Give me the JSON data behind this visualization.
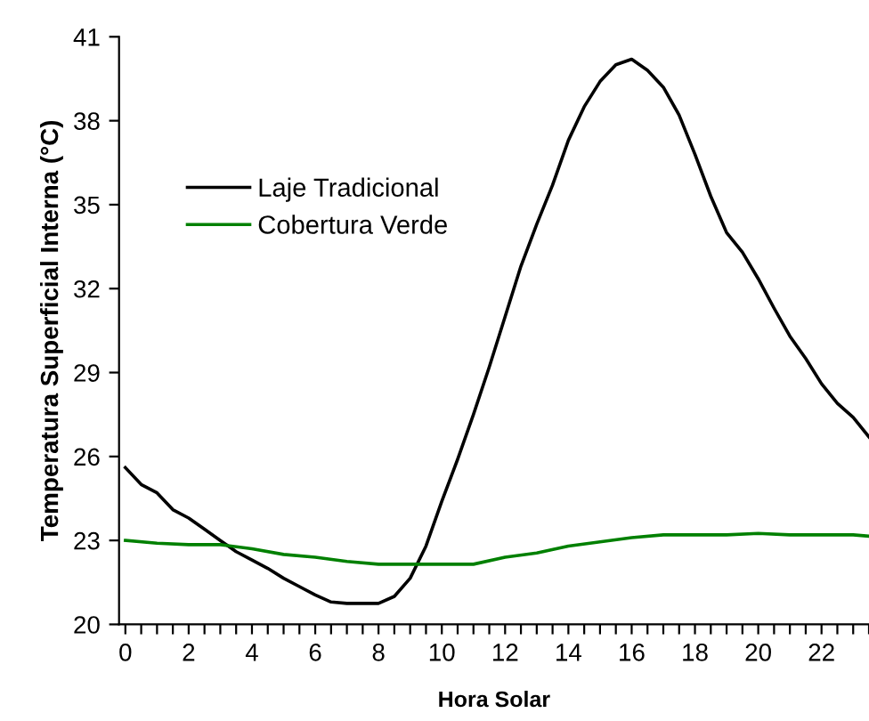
{
  "chart_data": {
    "type": "line",
    "xlabel": "Hora Solar",
    "ylabel": "Temperatura Superficial Interna (°C)",
    "xlim": [
      -0.2,
      23.5
    ],
    "ylim": [
      20,
      41
    ],
    "xticks": [
      0,
      {
        "value": 0.5,
        "label": null
      },
      {
        "value": 1,
        "label": null
      },
      {
        "value": 1.5,
        "label": null
      },
      2,
      {
        "value": 2.5,
        "label": null
      },
      {
        "value": 3,
        "label": null
      },
      {
        "value": 3.5,
        "label": null
      },
      4,
      {
        "value": 4.5,
        "label": null
      },
      {
        "value": 5,
        "label": null
      },
      {
        "value": 5.5,
        "label": null
      },
      6,
      {
        "value": 6.5,
        "label": null
      },
      {
        "value": 7,
        "label": null
      },
      {
        "value": 7.5,
        "label": null
      },
      8,
      {
        "value": 8.5,
        "label": null
      },
      {
        "value": 9,
        "label": null
      },
      {
        "value": 9.5,
        "label": null
      },
      10,
      {
        "value": 10.5,
        "label": null
      },
      {
        "value": 11,
        "label": null
      },
      {
        "value": 11.5,
        "label": null
      },
      12,
      {
        "value": 12.5,
        "label": null
      },
      {
        "value": 13,
        "label": null
      },
      {
        "value": 13.5,
        "label": null
      },
      14,
      {
        "value": 14.5,
        "label": null
      },
      {
        "value": 15,
        "label": null
      },
      {
        "value": 15.5,
        "label": null
      },
      16,
      {
        "value": 16.5,
        "label": null
      },
      {
        "value": 17,
        "label": null
      },
      {
        "value": 17.5,
        "label": null
      },
      18,
      {
        "value": 18.5,
        "label": null
      },
      {
        "value": 19,
        "label": null
      },
      {
        "value": 19.5,
        "label": null
      },
      20,
      {
        "value": 20.5,
        "label": null
      },
      {
        "value": 21,
        "label": null
      },
      {
        "value": 21.5,
        "label": null
      },
      22,
      {
        "value": 22.5,
        "label": null
      },
      {
        "value": 23,
        "label": null
      },
      {
        "value": 23.5,
        "label": null
      }
    ],
    "yticks": [
      20,
      23,
      26,
      29,
      32,
      35,
      38,
      41
    ],
    "grid": false,
    "legend": "top left",
    "marker": "none",
    "line_style": "solid",
    "series": [
      {
        "name": "Laje Tradicional",
        "color": "#000000",
        "x": [
          0,
          0.5,
          1,
          1.5,
          2,
          2.5,
          3,
          3.5,
          4,
          4.5,
          5,
          5.5,
          6,
          6.5,
          7,
          7.5,
          8,
          8.5,
          9,
          9.5,
          10,
          10.5,
          11,
          11.5,
          12,
          12.5,
          13,
          13.5,
          14,
          14.5,
          15,
          15.5,
          16,
          16.5,
          17,
          17.5,
          18,
          18.5,
          19,
          19.5,
          20,
          20.5,
          21,
          21.5,
          22,
          22.5,
          23,
          23.5
        ],
        "values": [
          25.6,
          25.0,
          24.7,
          24.1,
          23.8,
          23.4,
          23.0,
          22.6,
          22.3,
          22.0,
          21.65,
          21.35,
          21.05,
          20.8,
          20.75,
          20.75,
          20.75,
          21.0,
          21.65,
          22.8,
          24.4,
          25.9,
          27.5,
          29.2,
          31.0,
          32.8,
          34.3,
          35.7,
          37.3,
          38.5,
          39.4,
          40.0,
          40.2,
          39.8,
          39.2,
          38.2,
          36.8,
          35.3,
          34.0,
          33.3,
          32.35,
          31.3,
          30.3,
          29.5,
          28.6,
          27.9,
          27.4,
          26.7
        ]
      },
      {
        "name": "Cobertura Verde",
        "color": "#008000",
        "x": [
          0,
          1,
          2,
          3,
          4,
          5,
          6,
          7,
          8,
          9,
          10,
          11,
          12,
          13,
          14,
          15,
          16,
          17,
          18,
          19,
          20,
          21,
          22,
          23,
          23.5
        ],
        "values": [
          23.0,
          22.9,
          22.85,
          22.85,
          22.7,
          22.5,
          22.4,
          22.25,
          22.15,
          22.15,
          22.15,
          22.15,
          22.4,
          22.55,
          22.8,
          22.95,
          23.1,
          23.2,
          23.2,
          23.2,
          23.25,
          23.2,
          23.2,
          23.2,
          23.15
        ]
      }
    ]
  }
}
